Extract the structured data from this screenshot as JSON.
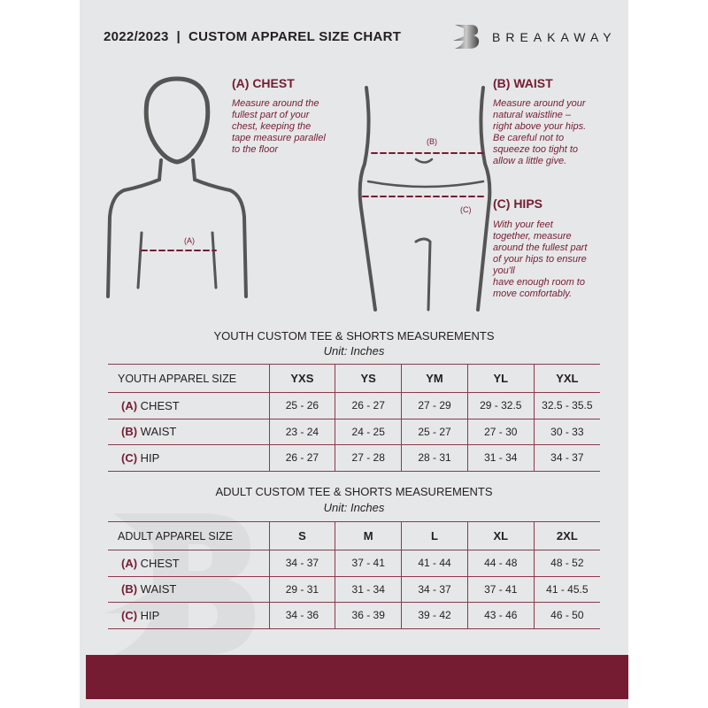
{
  "header": {
    "title": "2022/2023  |  CUSTOM APPAREL SIZE CHART",
    "brand": "BREAKAWAY",
    "logo_letter": "B"
  },
  "measures": {
    "chest": {
      "heading": "(A) CHEST",
      "marker": "(A)",
      "text": "Measure around the\nfullest part of your\nchest, keeping the\ntape measure parallel\nto the floor"
    },
    "waist": {
      "heading": "(B) WAIST",
      "marker": "(B)",
      "text": "Measure around your\nnatural waistline –\nright above your hips.\nBe careful not to\nsqueeze too tight to\nallow a little give."
    },
    "hips": {
      "heading": "(C) HIPS",
      "marker": "(C)",
      "text": "With your feet\ntogether, measure\naround the fullest part\nof your hips to ensure\nyou'll\nhave enough room to\nmove comfortably."
    }
  },
  "youth": {
    "title": "YOUTH CUSTOM TEE & SHORTS MEASUREMENTS",
    "unit": "Unit: Inches",
    "header_label": "YOUTH APPAREL SIZE",
    "sizes": [
      "YXS",
      "YS",
      "YM",
      "YL",
      "YXL"
    ],
    "rows": [
      {
        "letter": "(A)",
        "name": "CHEST",
        "values": [
          "25 - 26",
          "26 - 27",
          "27 - 29",
          "29 - 32.5",
          "32.5 - 35.5"
        ]
      },
      {
        "letter": "(B)",
        "name": "WAIST",
        "values": [
          "23 - 24",
          "24 - 25",
          "25 - 27",
          "27 - 30",
          "30 - 33"
        ]
      },
      {
        "letter": "(C)",
        "name": "HIP",
        "values": [
          "26 - 27",
          "27 - 28",
          "28 - 31",
          "31 - 34",
          "34 - 37"
        ]
      }
    ]
  },
  "adult": {
    "title": "ADULT CUSTOM TEE & SHORTS MEASUREMENTS",
    "unit": "Unit: Inches",
    "header_label": "ADULT APPAREL SIZE",
    "sizes": [
      "S",
      "M",
      "L",
      "XL",
      "2XL"
    ],
    "rows": [
      {
        "letter": "(A)",
        "name": "CHEST",
        "values": [
          "34 - 37",
          "37 - 41",
          "41 - 44",
          "44 - 48",
          "48 - 52"
        ]
      },
      {
        "letter": "(B)",
        "name": "WAIST",
        "values": [
          "29 - 31",
          "31 - 34",
          "34 - 37",
          "37 - 41",
          "41 - 45.5"
        ]
      },
      {
        "letter": "(C)",
        "name": "HIP",
        "values": [
          "34 - 36",
          "36 - 39",
          "39 - 42",
          "43 - 46",
          "46 - 50"
        ]
      }
    ]
  },
  "colors": {
    "accent": "#751c32",
    "panel": "#e6e7e8",
    "text": "#231f20"
  }
}
